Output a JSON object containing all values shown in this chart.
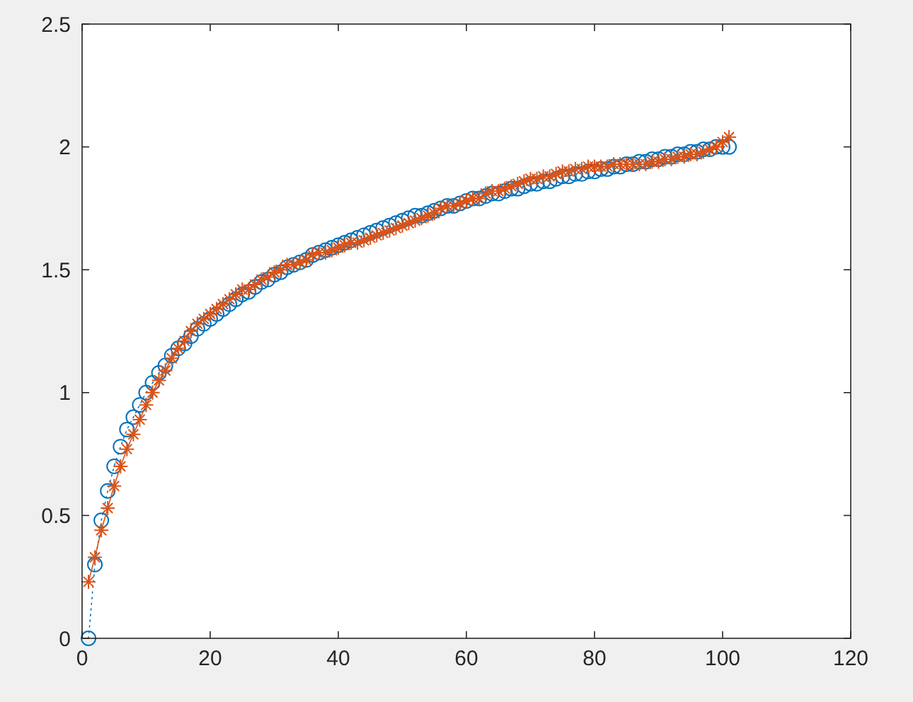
{
  "chart_data": {
    "type": "line",
    "x": [
      1,
      2,
      3,
      4,
      5,
      6,
      7,
      8,
      9,
      10,
      11,
      12,
      13,
      14,
      15,
      16,
      17,
      18,
      19,
      20,
      21,
      22,
      23,
      24,
      25,
      26,
      27,
      28,
      29,
      30,
      31,
      32,
      33,
      34,
      35,
      36,
      37,
      38,
      39,
      40,
      41,
      42,
      43,
      44,
      45,
      46,
      47,
      48,
      49,
      50,
      51,
      52,
      53,
      54,
      55,
      56,
      57,
      58,
      59,
      60,
      61,
      62,
      63,
      64,
      65,
      66,
      67,
      68,
      69,
      70,
      71,
      72,
      73,
      74,
      75,
      76,
      77,
      78,
      79,
      80,
      81,
      82,
      83,
      84,
      85,
      86,
      87,
      88,
      89,
      90,
      91,
      92,
      93,
      94,
      95,
      96,
      97,
      98,
      99,
      100,
      101
    ],
    "series": [
      {
        "color": "#0072bd",
        "marker": "circle",
        "line_style": "dotted",
        "values": [
          0.0,
          0.3,
          0.48,
          0.6,
          0.7,
          0.78,
          0.85,
          0.9,
          0.95,
          1.0,
          1.04,
          1.08,
          1.11,
          1.15,
          1.18,
          1.2,
          1.23,
          1.26,
          1.28,
          1.3,
          1.32,
          1.34,
          1.36,
          1.38,
          1.4,
          1.41,
          1.43,
          1.45,
          1.46,
          1.48,
          1.49,
          1.51,
          1.52,
          1.53,
          1.54,
          1.56,
          1.57,
          1.58,
          1.59,
          1.6,
          1.61,
          1.62,
          1.63,
          1.64,
          1.65,
          1.66,
          1.67,
          1.68,
          1.69,
          1.7,
          1.71,
          1.72,
          1.72,
          1.73,
          1.74,
          1.75,
          1.76,
          1.76,
          1.77,
          1.78,
          1.79,
          1.79,
          1.8,
          1.81,
          1.81,
          1.82,
          1.83,
          1.83,
          1.84,
          1.85,
          1.85,
          1.86,
          1.86,
          1.87,
          1.88,
          1.88,
          1.89,
          1.89,
          1.9,
          1.9,
          1.91,
          1.91,
          1.92,
          1.92,
          1.93,
          1.93,
          1.94,
          1.94,
          1.95,
          1.95,
          1.96,
          1.96,
          1.97,
          1.97,
          1.98,
          1.98,
          1.99,
          1.99,
          2.0,
          2.0,
          2.0
        ]
      },
      {
        "color": "#d95319",
        "marker": "cross",
        "line_style": "solid",
        "values": [
          0.23,
          0.33,
          0.44,
          0.53,
          0.62,
          0.7,
          0.77,
          0.83,
          0.89,
          0.95,
          1.0,
          1.05,
          1.09,
          1.14,
          1.18,
          1.21,
          1.25,
          1.28,
          1.3,
          1.32,
          1.34,
          1.36,
          1.38,
          1.4,
          1.42,
          1.42,
          1.44,
          1.46,
          1.47,
          1.49,
          1.5,
          1.52,
          1.52,
          1.53,
          1.54,
          1.56,
          1.57,
          1.57,
          1.58,
          1.59,
          1.6,
          1.61,
          1.61,
          1.62,
          1.63,
          1.64,
          1.65,
          1.66,
          1.67,
          1.68,
          1.69,
          1.7,
          1.71,
          1.72,
          1.73,
          1.75,
          1.76,
          1.76,
          1.77,
          1.78,
          1.79,
          1.79,
          1.81,
          1.82,
          1.82,
          1.83,
          1.84,
          1.85,
          1.86,
          1.87,
          1.87,
          1.88,
          1.88,
          1.89,
          1.9,
          1.9,
          1.91,
          1.91,
          1.92,
          1.92,
          1.92,
          1.92,
          1.93,
          1.93,
          1.93,
          1.93,
          1.93,
          1.93,
          1.94,
          1.94,
          1.95,
          1.95,
          1.96,
          1.96,
          1.97,
          1.97,
          1.98,
          1.99,
          2.0,
          2.02,
          2.04
        ]
      }
    ],
    "xlim": [
      0,
      120
    ],
    "xticks": [
      0,
      20,
      40,
      60,
      80,
      100,
      120
    ],
    "ylim": [
      0,
      2.5
    ],
    "yticks": [
      0,
      0.5,
      1,
      1.5,
      2,
      2.5
    ],
    "grid": false
  }
}
